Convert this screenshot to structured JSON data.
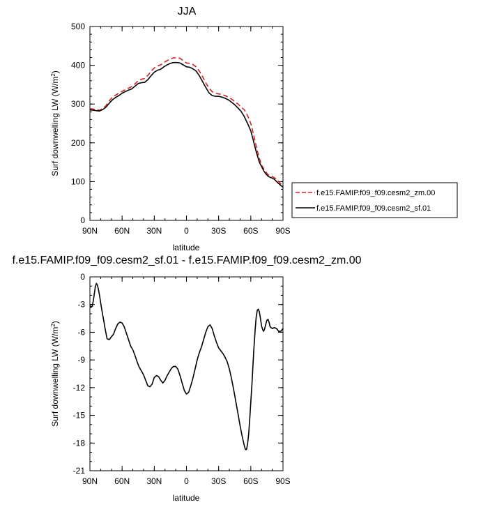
{
  "chart_data": [
    {
      "type": "line",
      "title": "JJA",
      "xlabel": "latitude",
      "ylabel": "Surf downwelling LW (W/m",
      "ylabel_sup": "2",
      "ylabel_close": ")",
      "xlim": [
        90,
        -90
      ],
      "ylim": [
        0,
        500
      ],
      "x_ticks": [
        90,
        60,
        30,
        0,
        -30,
        -60,
        -90
      ],
      "x_tick_labels": [
        "90N",
        "60N",
        "30N",
        "0",
        "30S",
        "60S",
        "90S"
      ],
      "y_ticks": [
        0,
        100,
        200,
        300,
        400,
        500
      ],
      "y_tick_labels": [
        "0",
        "100",
        "200",
        "300",
        "400",
        "500"
      ],
      "legend_position": "right",
      "series": [
        {
          "name": "f.e15.FAMIP.f09_f09.cesm2_zm.00",
          "color": "#d62020",
          "dash": "dashed",
          "x": [
            90,
            87,
            84,
            81,
            78,
            75,
            72,
            69,
            66,
            63,
            60,
            57,
            54,
            51,
            48,
            45,
            42,
            39,
            36,
            33,
            30,
            27,
            24,
            21,
            18,
            15,
            12,
            9,
            6,
            3,
            0,
            -3,
            -6,
            -9,
            -12,
            -15,
            -18,
            -21,
            -24,
            -27,
            -30,
            -33,
            -36,
            -39,
            -42,
            -45,
            -48,
            -51,
            -54,
            -57,
            -60,
            -62,
            -64,
            -66,
            -68,
            -70,
            -72,
            -74,
            -76,
            -78,
            -80,
            -82,
            -84,
            -86,
            -88,
            -90
          ],
          "y": [
            288,
            287,
            286,
            284,
            288,
            296,
            308,
            318,
            323,
            328,
            333,
            337,
            341,
            345,
            352,
            360,
            364,
            366,
            374,
            384,
            393,
            398,
            401,
            407,
            412,
            416,
            419,
            419,
            418,
            412,
            406,
            405,
            402,
            396,
            385,
            371,
            355,
            341,
            332,
            328,
            326,
            325,
            322,
            318,
            313,
            307,
            300,
            292,
            285,
            270,
            250,
            228,
            204,
            180,
            160,
            143,
            133,
            125,
            118,
            115,
            113,
            110,
            106,
            100,
            94,
            90
          ]
        },
        {
          "name": "f.e15.FAMIP.f09_f09.cesm2_sf.01",
          "color": "#000000",
          "dash": "solid",
          "x": [
            90,
            87,
            84,
            81,
            78,
            75,
            72,
            69,
            66,
            63,
            60,
            57,
            54,
            51,
            48,
            45,
            42,
            39,
            36,
            33,
            30,
            27,
            24,
            21,
            18,
            15,
            12,
            9,
            6,
            3,
            0,
            -3,
            -6,
            -9,
            -12,
            -15,
            -18,
            -21,
            -24,
            -27,
            -30,
            -33,
            -36,
            -39,
            -42,
            -45,
            -48,
            -51,
            -54,
            -57,
            -60,
            -62,
            -64,
            -66,
            -68,
            -70,
            -72,
            -74,
            -76,
            -78,
            -80,
            -82,
            -84,
            -86,
            -88,
            -90
          ],
          "y": [
            285,
            284,
            283,
            282,
            286,
            292,
            302,
            311,
            317,
            322,
            328,
            332,
            336,
            339,
            346,
            353,
            355,
            356,
            363,
            373,
            382,
            387,
            390,
            396,
            401,
            405,
            407,
            407,
            406,
            401,
            396,
            395,
            391,
            385,
            373,
            358,
            343,
            329,
            322,
            320,
            320,
            318,
            315,
            311,
            305,
            298,
            290,
            281,
            267,
            250,
            231,
            210,
            188,
            168,
            150,
            139,
            128,
            120,
            114,
            111,
            109,
            106,
            100,
            95,
            90,
            86
          ]
        }
      ]
    },
    {
      "type": "line",
      "title": "f.e15.FAMIP.f09_f09.cesm2_sf.01 - f.e15.FAMIP.f09_f09.cesm2_zm.00",
      "xlabel": "latitude",
      "ylabel": "Surf downwelling LW (W/m",
      "ylabel_sup": "2",
      "ylabel_close": ")",
      "xlim": [
        90,
        -90
      ],
      "ylim": [
        -21,
        0
      ],
      "x_ticks": [
        90,
        60,
        30,
        0,
        -30,
        -60,
        -90
      ],
      "x_tick_labels": [
        "90N",
        "60N",
        "30N",
        "0",
        "30S",
        "60S",
        "90S"
      ],
      "y_ticks": [
        0,
        -3,
        -6,
        -9,
        -12,
        -15,
        -18,
        -21
      ],
      "y_tick_labels": [
        "0",
        "-3",
        "-6",
        "-9",
        "-12",
        "-15",
        "-18",
        "-21"
      ],
      "series": [
        {
          "color": "#000000",
          "dash": "solid",
          "x": [
            90,
            89,
            88,
            87,
            86,
            85,
            84,
            83,
            82,
            81,
            80,
            79,
            78,
            77,
            76,
            74,
            72,
            70,
            68,
            66,
            64,
            62,
            60,
            58,
            56,
            54,
            52,
            50,
            48,
            46,
            44,
            42,
            40,
            38,
            36,
            34,
            32,
            30,
            28,
            26,
            24,
            22,
            20,
            18,
            16,
            14,
            12,
            10,
            8,
            6,
            4,
            2,
            0,
            -2,
            -4,
            -6,
            -8,
            -10,
            -12,
            -14,
            -16,
            -18,
            -20,
            -22,
            -24,
            -26,
            -28,
            -30,
            -32,
            -34,
            -36,
            -38,
            -40,
            -42,
            -44,
            -46,
            -48,
            -50,
            -52,
            -54,
            -55,
            -56,
            -57,
            -58,
            -59,
            -60,
            -61,
            -62,
            -63,
            -64,
            -65,
            -66,
            -67,
            -68,
            -69,
            -70,
            -71,
            -72,
            -73,
            -74,
            -75,
            -76,
            -77,
            -78,
            -80,
            -82,
            -84,
            -86,
            -88,
            -90
          ],
          "y": [
            -3.1,
            -3.3,
            -3.2,
            -2.7,
            -1.9,
            -1.1,
            -0.7,
            -0.9,
            -1.4,
            -2.0,
            -2.8,
            -3.5,
            -4.2,
            -4.8,
            -5.5,
            -6.7,
            -6.8,
            -6.5,
            -6.2,
            -5.6,
            -5.1,
            -4.9,
            -5.0,
            -5.4,
            -6.1,
            -6.8,
            -7.5,
            -7.9,
            -8.5,
            -9.2,
            -9.8,
            -10.2,
            -10.6,
            -11.2,
            -11.8,
            -11.9,
            -11.6,
            -10.9,
            -10.7,
            -10.8,
            -11.2,
            -11.5,
            -11.2,
            -10.7,
            -10.3,
            -9.9,
            -9.7,
            -9.7,
            -10.0,
            -10.7,
            -11.5,
            -12.3,
            -12.7,
            -12.5,
            -11.8,
            -11.0,
            -10.0,
            -9.0,
            -8.2,
            -7.6,
            -6.8,
            -6.0,
            -5.4,
            -5.2,
            -5.6,
            -6.4,
            -7.1,
            -7.7,
            -8.0,
            -8.3,
            -8.7,
            -9.2,
            -10.0,
            -11.0,
            -12.2,
            -13.5,
            -14.8,
            -16.1,
            -17.3,
            -18.3,
            -18.7,
            -18.7,
            -18.1,
            -17.0,
            -15.4,
            -13.6,
            -11.7,
            -9.6,
            -7.6,
            -5.8,
            -4.4,
            -3.6,
            -3.5,
            -3.8,
            -4.5,
            -5.3,
            -5.7,
            -5.9,
            -5.6,
            -5.1,
            -4.7,
            -4.6,
            -4.9,
            -5.4,
            -5.6,
            -5.5,
            -5.6,
            -5.9,
            -5.9,
            -5.6
          ]
        }
      ]
    }
  ]
}
